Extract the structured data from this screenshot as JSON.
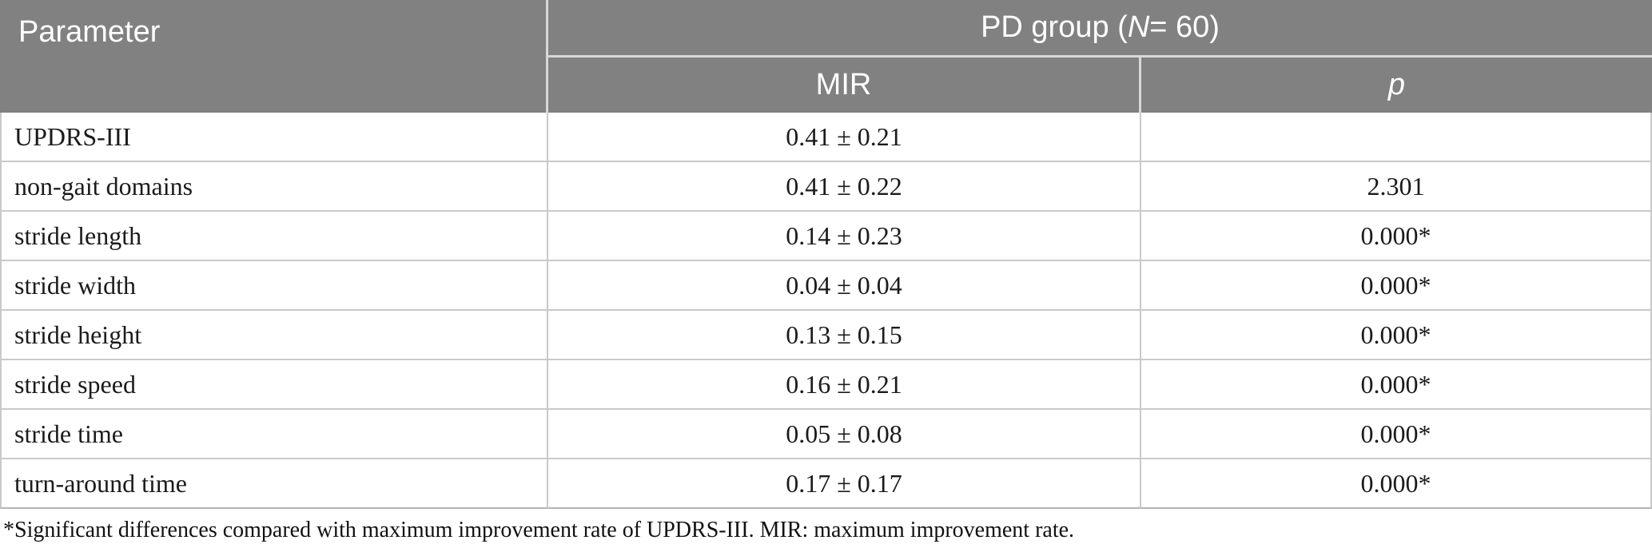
{
  "header": {
    "parameter_label": "Parameter",
    "group": {
      "prefix": "PD group (",
      "n": "N",
      "suffix": " = 60)"
    },
    "mir_label": "MIR",
    "p_label": "p"
  },
  "rows": [
    {
      "parameter": "UPDRS-III",
      "mir": "0.41 ± 0.21",
      "p": ""
    },
    {
      "parameter": "non-gait domains",
      "mir": "0.41 ± 0.22",
      "p": "2.301"
    },
    {
      "parameter": "stride length",
      "mir": "0.14 ± 0.23",
      "p": "0.000*"
    },
    {
      "parameter": "stride width",
      "mir": "0.04 ± 0.04",
      "p": "0.000*"
    },
    {
      "parameter": "stride height",
      "mir": "0.13 ± 0.15",
      "p": "0.000*"
    },
    {
      "parameter": "stride speed",
      "mir": "0.16 ± 0.21",
      "p": "0.000*"
    },
    {
      "parameter": "stride time",
      "mir": "0.05 ± 0.08",
      "p": "0.000*"
    },
    {
      "parameter": "turn-around time",
      "mir": "0.17 ± 0.17",
      "p": "0.000*"
    }
  ],
  "footnote": "*Significant differences compared with maximum improvement rate of UPDRS-III. MIR: maximum improvement rate.",
  "colors": {
    "header_bg": "#818181",
    "header_text": "#ffffff",
    "header_divider": "#d8d8d8",
    "row_border": "#c9c9c9",
    "bottom_border": "#b3b3b3",
    "body_text": "#1b1b1b",
    "page_bg": "#ffffff"
  },
  "chart_data": {
    "type": "table",
    "title": "",
    "columns": [
      "Parameter",
      "MIR",
      "p"
    ],
    "group_header": "PD group (N = 60)",
    "cells": [
      [
        "UPDRS-III",
        "0.41 ± 0.21",
        ""
      ],
      [
        "non-gait domains",
        "0.41 ± 0.22",
        "2.301"
      ],
      [
        "stride length",
        "0.14 ± 0.23",
        "0.000*"
      ],
      [
        "stride width",
        "0.04 ± 0.04",
        "0.000*"
      ],
      [
        "stride height",
        "0.13 ± 0.15",
        "0.000*"
      ],
      [
        "stride speed",
        "0.16 ± 0.21",
        "0.000*"
      ],
      [
        "stride time",
        "0.05 ± 0.08",
        "0.000*"
      ],
      [
        "turn-around time",
        "0.17 ± 0.17",
        "0.000*"
      ]
    ]
  }
}
